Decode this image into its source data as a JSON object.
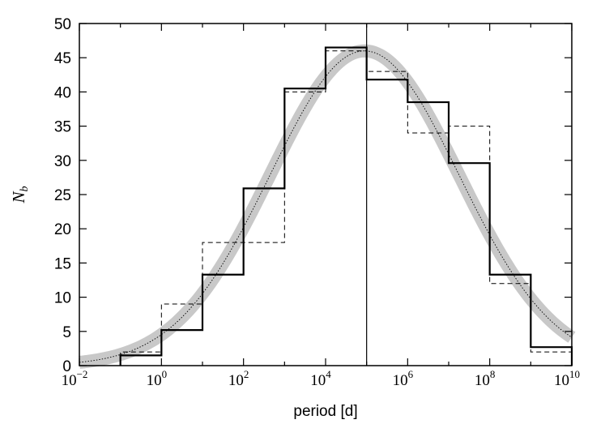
{
  "chart_data": {
    "type": "histogram",
    "title": "",
    "xlabel": "period [d]",
    "ylabel_main": "N",
    "ylabel_sub": "b",
    "x_scale": "log10",
    "xlim": [
      0.01,
      10000000000
    ],
    "ylim": [
      0,
      50
    ],
    "x_ticks": [
      {
        "value": 0.01,
        "base": "10",
        "exp": "−2"
      },
      {
        "value": 1,
        "base": "10",
        "exp": "0"
      },
      {
        "value": 100,
        "base": "10",
        "exp": "2"
      },
      {
        "value": 10000,
        "base": "10",
        "exp": "4"
      },
      {
        "value": 1000000,
        "base": "10",
        "exp": "6"
      },
      {
        "value": 100000000,
        "base": "10",
        "exp": "8"
      },
      {
        "value": 10000000000,
        "base": "10",
        "exp": "10"
      }
    ],
    "y_ticks": [
      "0",
      "5",
      "10",
      "15",
      "20",
      "25",
      "30",
      "35",
      "40",
      "45",
      "50"
    ],
    "grid": false,
    "legend": "none",
    "bin_edges": [
      0.1,
      1,
      10,
      100,
      1000,
      10000,
      100000,
      1000000,
      10000000,
      100000000,
      1000000000,
      10000000000
    ],
    "series": [
      {
        "style": "solid",
        "values": [
          1.5,
          5.2,
          13.3,
          25.9,
          40.5,
          46.5,
          41.8,
          38.5,
          29.6,
          13.3,
          2.7
        ]
      },
      {
        "style": "dashed",
        "values": [
          2.0,
          9.0,
          18.0,
          18.0,
          40.0,
          46.0,
          43.0,
          34.0,
          35.0,
          12.0,
          2.0
        ]
      }
    ],
    "model": {
      "type": "lognormal-gaussian",
      "peak": 46.0,
      "mean_log10_period": 4.95,
      "sigma_log10_period": 2.3,
      "band_color": "#c8c8c8",
      "curve_style": "dotted"
    },
    "vertical_marker": {
      "value": 100000,
      "style": "solid"
    },
    "colors": {
      "axes": "#000000",
      "band": "#c8c8c8"
    }
  }
}
